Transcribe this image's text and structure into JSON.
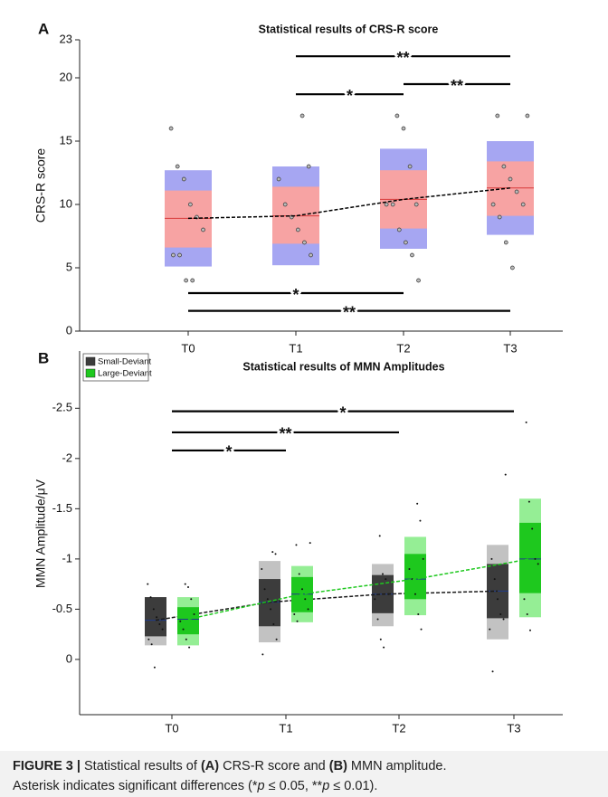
{
  "chart_data": [
    {
      "type": "box",
      "panel": "A",
      "title": "Statistical results of CRS-R score",
      "ylabel": "CRS-R score",
      "categories": [
        "T0",
        "T1",
        "T2",
        "T3"
      ],
      "ylim": [
        0,
        23
      ],
      "yticks": [
        0,
        5,
        10,
        15,
        20,
        23
      ],
      "y_reversed": false,
      "series": [
        {
          "color": "#f7a3a3",
          "outer_color": "#a6a6f2",
          "mean_color": "#d83b3b",
          "trend_color": "#000000",
          "mean": [
            8.9,
            9.1,
            10.4,
            11.3
          ],
          "inner_low": [
            6.6,
            6.9,
            8.1,
            9.1
          ],
          "inner_high": [
            11.1,
            11.4,
            12.7,
            13.4
          ],
          "outer_low": [
            5.1,
            5.2,
            6.5,
            7.6
          ],
          "outer_high": [
            12.7,
            13.0,
            14.4,
            15.0
          ],
          "points": [
            [
              16,
              13,
              12,
              10,
              9,
              8,
              6,
              6,
              4,
              4
            ],
            [
              17,
              13,
              12,
              10,
              9,
              8,
              7,
              6
            ],
            [
              17,
              16,
              13,
              10,
              10,
              10,
              8,
              7,
              6,
              4
            ],
            [
              17,
              17,
              13,
              12,
              11,
              10,
              10,
              9,
              7,
              5
            ]
          ]
        }
      ],
      "brackets": [
        {
          "from": "T1",
          "to": "T3",
          "y": 21.7,
          "label": "**"
        },
        {
          "from": "T1",
          "to": "T2",
          "y": 18.7,
          "label": "*"
        },
        {
          "from": "T2",
          "to": "T3",
          "y": 19.5,
          "label": "**"
        },
        {
          "from": "T0",
          "to": "T2",
          "y": 3.0,
          "label": "*"
        },
        {
          "from": "T0",
          "to": "T3",
          "y": 1.6,
          "label": "**"
        }
      ]
    },
    {
      "type": "box",
      "panel": "B",
      "title": "Statistical results of MMN Amplitudes",
      "ylabel": "MMN Amplitude/μV",
      "categories": [
        "T0",
        "T1",
        "T2",
        "T3"
      ],
      "ylim": [
        -3.07,
        0.55
      ],
      "yticks": [
        -2.5,
        -2,
        -1.5,
        -1,
        -0.5,
        0
      ],
      "y_reversed": true,
      "legend": "upper left",
      "series": [
        {
          "name": "Small-Deviant",
          "color": "#3c3c3c",
          "outer_color": "#c2c2c2",
          "mean_color": "#1f3a8a",
          "trend_color": "#1a1a1a",
          "mean": [
            -0.39,
            -0.57,
            -0.65,
            -0.68
          ],
          "inner_low": [
            -0.23,
            -0.33,
            -0.46,
            -0.41
          ],
          "inner_high": [
            -0.62,
            -0.8,
            -0.84,
            -0.95
          ],
          "outer_low": [
            -0.14,
            -0.17,
            -0.33,
            -0.2
          ],
          "outer_high": [
            -0.62,
            -0.98,
            -0.95,
            -1.14
          ],
          "points": [
            [
              -0.75,
              -0.62,
              -0.5,
              -0.42,
              -0.35,
              -0.3,
              -0.2,
              -0.15,
              0.08
            ],
            [
              -1.07,
              -1.05,
              -0.9,
              -0.7,
              -0.6,
              -0.5,
              -0.35,
              -0.2,
              -0.05
            ],
            [
              -1.23,
              -0.85,
              -0.8,
              -0.65,
              -0.6,
              -0.4,
              -0.2,
              -0.12
            ],
            [
              -1.84,
              -1.0,
              -0.8,
              -0.6,
              -0.45,
              -0.4,
              -0.3,
              0.12
            ]
          ]
        },
        {
          "name": "Large-Deviant",
          "color": "#1ec81e",
          "outer_color": "#95ee95",
          "mean_color": "#1f3a8a",
          "trend_color": "#1ec81e",
          "mean": [
            -0.4,
            -0.65,
            -0.8,
            -1.0
          ],
          "inner_low": [
            -0.25,
            -0.47,
            -0.6,
            -0.66
          ],
          "inner_high": [
            -0.52,
            -0.82,
            -1.05,
            -1.36
          ],
          "outer_low": [
            -0.14,
            -0.37,
            -0.44,
            -0.42
          ],
          "outer_high": [
            -0.62,
            -0.93,
            -1.22,
            -1.6
          ],
          "points": [
            [
              -0.75,
              -0.72,
              -0.6,
              -0.45,
              -0.38,
              -0.3,
              -0.2,
              -0.12
            ],
            [
              -1.16,
              -1.14,
              -0.85,
              -0.7,
              -0.6,
              -0.5,
              -0.45,
              -0.38
            ],
            [
              -1.55,
              -1.38,
              -1.0,
              -0.9,
              -0.8,
              -0.65,
              -0.45,
              -0.3
            ],
            [
              -2.36,
              -1.57,
              -1.3,
              -1.0,
              -0.95,
              -0.6,
              -0.45,
              -0.29
            ]
          ]
        }
      ],
      "brackets": [
        {
          "from": "T0",
          "to": "T3",
          "y": -2.47,
          "label": "*"
        },
        {
          "from": "T0",
          "to": "T2",
          "y": -2.26,
          "label": "**"
        },
        {
          "from": "T0",
          "to": "T1",
          "y": -2.08,
          "label": "*"
        }
      ]
    }
  ],
  "caption": [
    [
      {
        "text": "FIGURE 3 |",
        "bold": true
      },
      {
        "text": " Statistical results of "
      },
      {
        "text": "(A)",
        "bold": true
      },
      {
        "text": " CRS-R score and "
      },
      {
        "text": "(B)",
        "bold": true
      },
      {
        "text": " MMN amplitude."
      }
    ],
    [
      {
        "text": "Asterisk indicates significant differences (*"
      },
      {
        "text": "p",
        "italic": true
      },
      {
        "text": " ≤ 0.05, **"
      },
      {
        "text": "p",
        "italic": true
      },
      {
        "text": " ≤ 0.01)."
      }
    ]
  ]
}
